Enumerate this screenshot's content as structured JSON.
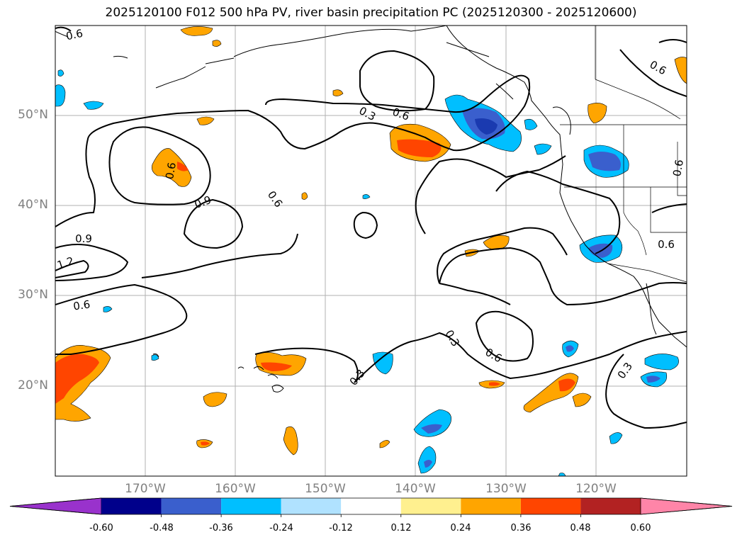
{
  "title": "2025120100 F012 500 hPa PV, river basin precipitation PC (2025120300 - 2025120600)",
  "lat_labels": [
    "50°N",
    "40°N",
    "30°N",
    "20°N"
  ],
  "lon_labels": [
    "170°W",
    "160°W",
    "150°W",
    "140°W",
    "130°W",
    "120°W"
  ],
  "contour_labels": [
    "0.6",
    "0.3",
    "0.6",
    "0.9",
    "0.6",
    "0.9",
    "1.2",
    "0.6",
    "0.3",
    "0.6",
    "0.3",
    "0.3",
    "0.6",
    "0.6",
    "0.6",
    "0.6"
  ],
  "colorbar": {
    "ticks": [
      "-0.60",
      "-0.48",
      "-0.36",
      "-0.24",
      "-0.12",
      "0.12",
      "0.24",
      "0.36",
      "0.48",
      "0.60"
    ],
    "colors": [
      "#9932cc",
      "#00008b",
      "#3a5fcd",
      "#00bfff",
      "#b0e2ff",
      "#ffffff",
      "#fff08f",
      "#ffa500",
      "#ff4500",
      "#b22222",
      "#ff85a8"
    ]
  },
  "chart_data": {
    "type": "map",
    "title": "2025120100 F012 500 hPa PV, river basin precipitation PC (2025120300 - 2025120600)",
    "lon_range": [
      -180,
      -110
    ],
    "lat_range": [
      10,
      60
    ],
    "contour_levels": [
      0.3,
      0.6,
      0.9,
      1.2
    ],
    "colorbar_ticks": [
      -0.6,
      -0.48,
      -0.36,
      -0.24,
      -0.12,
      0.12,
      0.24,
      0.36,
      0.48,
      0.6
    ]
  }
}
